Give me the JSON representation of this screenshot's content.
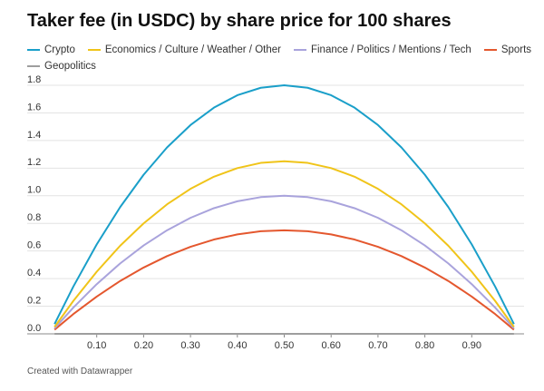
{
  "chart_data": {
    "type": "line",
    "title": "Taker fee (in USDC) by share price for 100 shares",
    "x": [
      0.01,
      0.05,
      0.1,
      0.15,
      0.2,
      0.25,
      0.3,
      0.35,
      0.4,
      0.45,
      0.5,
      0.55,
      0.6,
      0.65,
      0.7,
      0.75,
      0.8,
      0.85,
      0.9,
      0.95,
      0.99
    ],
    "series": [
      {
        "name": "Crypto",
        "color": "#1a9fc9",
        "values": [
          0.071,
          0.342,
          0.648,
          0.918,
          1.152,
          1.35,
          1.512,
          1.638,
          1.728,
          1.782,
          1.8,
          1.782,
          1.728,
          1.638,
          1.512,
          1.35,
          1.152,
          0.918,
          0.648,
          0.342,
          0.071
        ]
      },
      {
        "name": "Economics / Culture / Weather / Other",
        "color": "#f0c419",
        "values": [
          0.05,
          0.238,
          0.45,
          0.638,
          0.8,
          0.938,
          1.05,
          1.138,
          1.2,
          1.238,
          1.25,
          1.238,
          1.2,
          1.138,
          1.05,
          0.938,
          0.8,
          0.638,
          0.45,
          0.238,
          0.05
        ]
      },
      {
        "name": "Finance / Politics / Mentions / Tech",
        "color": "#a9a3dc",
        "values": [
          0.04,
          0.19,
          0.36,
          0.51,
          0.64,
          0.75,
          0.84,
          0.91,
          0.96,
          0.99,
          1.0,
          0.99,
          0.96,
          0.91,
          0.84,
          0.75,
          0.64,
          0.51,
          0.36,
          0.19,
          0.04
        ]
      },
      {
        "name": "Sports",
        "color": "#e4572e",
        "values": [
          0.03,
          0.143,
          0.27,
          0.383,
          0.48,
          0.563,
          0.63,
          0.683,
          0.72,
          0.743,
          0.75,
          0.743,
          0.72,
          0.683,
          0.63,
          0.563,
          0.48,
          0.383,
          0.27,
          0.143,
          0.03
        ]
      },
      {
        "name": "Geopolitics",
        "color": "#9e9e9e",
        "values": [
          0,
          0,
          0,
          0,
          0,
          0,
          0,
          0,
          0,
          0,
          0,
          0,
          0,
          0,
          0,
          0,
          0,
          0,
          0,
          0,
          0
        ]
      }
    ],
    "xlim": [
      0,
      1
    ],
    "ylim": [
      0,
      1.8
    ],
    "xticks": [
      {
        "value": 0.1,
        "label": "0.10"
      },
      {
        "value": 0.2,
        "label": "0.20"
      },
      {
        "value": 0.3,
        "label": "0.30"
      },
      {
        "value": 0.4,
        "label": "0.40"
      },
      {
        "value": 0.5,
        "label": "0.50"
      },
      {
        "value": 0.6,
        "label": "0.60"
      },
      {
        "value": 0.7,
        "label": "0.70"
      },
      {
        "value": 0.8,
        "label": "0.80"
      },
      {
        "value": 0.9,
        "label": "0.90"
      }
    ],
    "yticks": [
      {
        "value": 0,
        "label": "0.0"
      },
      {
        "value": 0.2,
        "label": "0.2"
      },
      {
        "value": 0.4,
        "label": "0.4"
      },
      {
        "value": 0.6,
        "label": "0.6"
      },
      {
        "value": 0.8,
        "label": "0.8"
      },
      {
        "value": 1.0,
        "label": "1.0"
      },
      {
        "value": 1.2,
        "label": "1.2"
      },
      {
        "value": 1.4,
        "label": "1.4"
      },
      {
        "value": 1.6,
        "label": "1.6"
      },
      {
        "value": 1.8,
        "label": "1.8"
      }
    ],
    "grid": true
  },
  "footer": "Created with Datawrapper"
}
